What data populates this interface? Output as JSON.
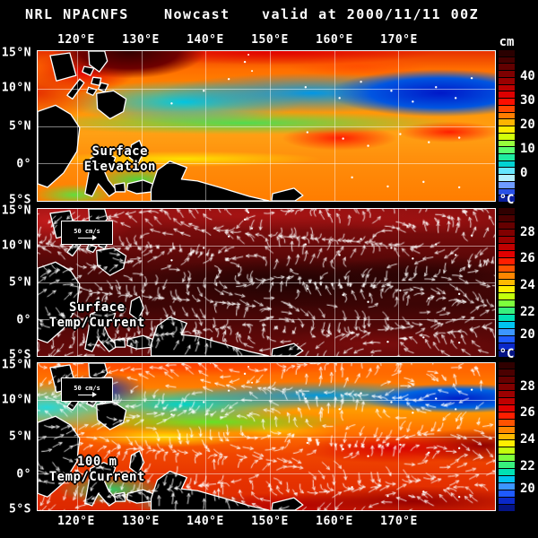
{
  "title": {
    "program": "NRL NPACNFS",
    "mode": "Nowcast",
    "valid": "valid at 2000/11/11 00Z"
  },
  "axes": {
    "lon": [
      "120°E",
      "130°E",
      "140°E",
      "150°E",
      "160°E",
      "170°E"
    ],
    "lat": [
      "15°N",
      "10°N",
      "5°N",
      "0°",
      "5°S"
    ]
  },
  "panels": [
    {
      "name": "Surface Elevation",
      "label": [
        "Surface",
        "Elevation"
      ],
      "colorbar": {
        "unit": "cm",
        "ticks": [
          40,
          30,
          20,
          10,
          0
        ],
        "colors": [
          "#2a0000",
          "#460000",
          "#620000",
          "#7e0000",
          "#9a0000",
          "#bc0000",
          "#de0000",
          "#fb0f00",
          "#ff4600",
          "#ff7d00",
          "#ffb400",
          "#ffeb00",
          "#d2ff0a",
          "#96ff3c",
          "#5aff6e",
          "#1eeba0",
          "#00d2d2",
          "#64e6ff",
          "#b4f0ff",
          "#6e9bff",
          "#2850e6",
          "#0a1e9b"
        ]
      }
    },
    {
      "name": "Surface Temp/Current",
      "label": [
        "Surface",
        "Temp/Current"
      ],
      "vector_key": "50 cm/s",
      "colorbar": {
        "unit": "°C",
        "ticks": [
          28,
          26,
          24,
          22,
          20
        ],
        "colors": [
          "#300000",
          "#4b0000",
          "#660000",
          "#810000",
          "#9c0000",
          "#c00000",
          "#e10000",
          "#ff1e00",
          "#ff5200",
          "#ff8600",
          "#ffba00",
          "#ffee00",
          "#c3ff0c",
          "#7dff3c",
          "#37f07d",
          "#00e1b4",
          "#00c3f0",
          "#3c96ff",
          "#1e5aff",
          "#0a28c8",
          "#051484"
        ]
      }
    },
    {
      "name": "100 m Temp/Current",
      "label": [
        "100 m",
        "Temp/Current"
      ],
      "vector_key": "50 cm/s",
      "colorbar": {
        "unit": "°C",
        "ticks": [
          28,
          26,
          24,
          22,
          20
        ],
        "colors": [
          "#300000",
          "#4b0000",
          "#660000",
          "#810000",
          "#9c0000",
          "#c00000",
          "#e10000",
          "#ff1e00",
          "#ff5200",
          "#ff8600",
          "#ffba00",
          "#ffee00",
          "#c3ff0c",
          "#7dff3c",
          "#37f07d",
          "#00e1b4",
          "#00c3f0",
          "#3c96ff",
          "#1e5aff",
          "#0a28c8",
          "#051484"
        ]
      }
    }
  ],
  "chart_data": [
    {
      "type": "heatmap",
      "title": "Surface Elevation",
      "colorbar_unit": "cm",
      "colorbar_ticks": [
        40,
        30,
        20,
        10,
        0
      ],
      "x_tick_labels": [
        "120°E",
        "130°E",
        "140°E",
        "150°E",
        "160°E",
        "170°E"
      ],
      "y_tick_labels": [
        "15°N",
        "10°N",
        "5°N",
        "0°",
        "5°S"
      ],
      "legend_position": "right"
    },
    {
      "type": "heatmap",
      "title": "Surface Temp/Current",
      "colorbar_unit": "°C",
      "colorbar_ticks": [
        28,
        26,
        24,
        22,
        20
      ],
      "vector_key": "50 cm/s",
      "x_tick_labels": [
        "120°E",
        "130°E",
        "140°E",
        "150°E",
        "160°E",
        "170°E"
      ],
      "y_tick_labels": [
        "15°N",
        "10°N",
        "5°N",
        "0°",
        "5°S"
      ],
      "legend_position": "right"
    },
    {
      "type": "heatmap",
      "title": "100 m Temp/Current",
      "colorbar_unit": "°C",
      "colorbar_ticks": [
        28,
        26,
        24,
        22,
        20
      ],
      "vector_key": "50 cm/s",
      "x_tick_labels": [
        "120°E",
        "130°E",
        "140°E",
        "150°E",
        "160°E",
        "170°E"
      ],
      "y_tick_labels": [
        "15°N",
        "10°N",
        "5°N",
        "0°",
        "5°S"
      ],
      "legend_position": "right"
    }
  ]
}
